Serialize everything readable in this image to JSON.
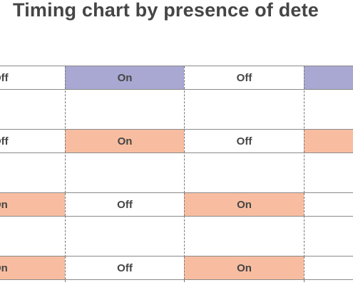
{
  "title": "Timing chart by presence of dete",
  "colors": {
    "blue_on": "#a9a8d2",
    "orange_on": "#f8bda0",
    "off": "#ffffff",
    "text": "#454545"
  },
  "rows": [
    {
      "cells": [
        {
          "label": "Off",
          "state": "off"
        },
        {
          "label": "On",
          "state": "on-blue"
        },
        {
          "label": "Off",
          "state": "off"
        },
        {
          "label": "",
          "state": "on-blue"
        }
      ]
    },
    {
      "cells": [
        {
          "label": "Off",
          "state": "off"
        },
        {
          "label": "On",
          "state": "on-orange"
        },
        {
          "label": "Off",
          "state": "off"
        },
        {
          "label": "",
          "state": "on-orange"
        }
      ]
    },
    {
      "cells": [
        {
          "label": "On",
          "state": "on-orange"
        },
        {
          "label": "Off",
          "state": "off"
        },
        {
          "label": "On",
          "state": "on-orange"
        },
        {
          "label": "",
          "state": "off"
        }
      ]
    },
    {
      "cells": [
        {
          "label": "On",
          "state": "on-orange"
        },
        {
          "label": "Off",
          "state": "off"
        },
        {
          "label": "On",
          "state": "on-orange"
        },
        {
          "label": "",
          "state": "off"
        }
      ]
    }
  ]
}
